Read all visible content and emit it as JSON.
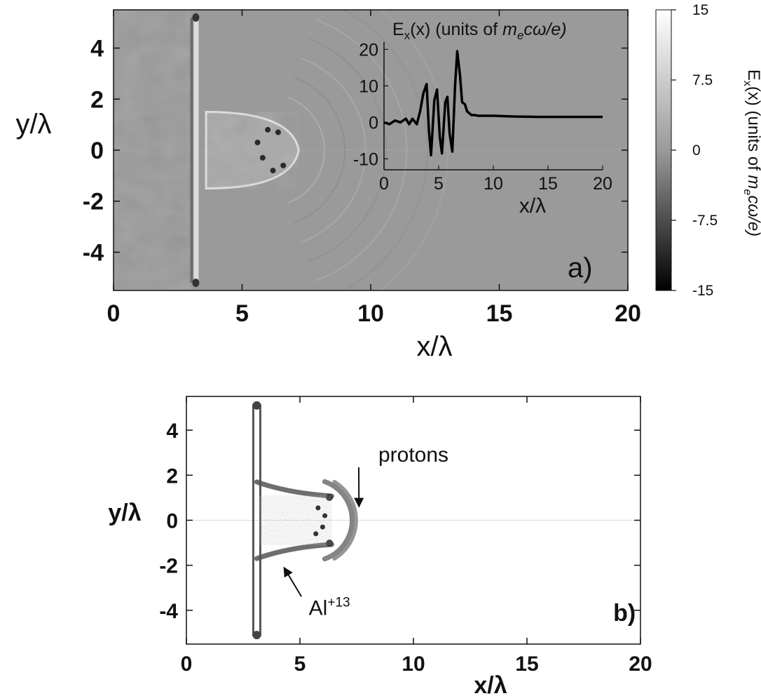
{
  "chart_data": [
    {
      "panel": "a)",
      "type": "heatmap",
      "xlabel": "x/λ",
      "ylabel": "y/λ",
      "xlim": [
        0,
        20
      ],
      "ylim": [
        -5.5,
        5.5
      ],
      "xticks": [
        "0",
        "5",
        "10",
        "15",
        "20"
      ],
      "yticks": [
        "4",
        "2",
        "0",
        "-2",
        "-4"
      ],
      "colorbar": {
        "label": "E_x(x) (units of m_e cω/e)",
        "label_parts": [
          "E",
          "x",
          "(x) (units of ",
          "m",
          "e",
          "cω/e)"
        ],
        "ticks": [
          "15",
          "7.5",
          "0",
          "-7.5",
          "-15"
        ],
        "range": [
          -15,
          15
        ],
        "colormap": "grayscale, black = -15, white = 15"
      },
      "features": {
        "target_foil_x": 3.2,
        "foil_extent_y": [
          -5.2,
          5.2
        ],
        "shock_front_apex_x": 7.2,
        "shock_front_halfwidth_y": 1.5,
        "wave_arc_center": [
          6.0,
          0
        ],
        "wave_arc_radii": [
          2.2,
          3.0,
          3.8,
          4.6,
          5.4,
          6.2,
          7.0
        ]
      },
      "inset": {
        "type": "line",
        "title": "E_x(x)  (units of m_e cω/e)",
        "title_parts": [
          "E",
          "x",
          "(x)  (units of ",
          "m",
          "e",
          "cω/e)"
        ],
        "xlabel": "x/λ",
        "xlim": [
          0,
          20
        ],
        "ylim": [
          -13,
          22
        ],
        "xticks": [
          "0",
          "5",
          "10",
          "15",
          "20"
        ],
        "yticks": [
          "20",
          "10",
          "0",
          "-10"
        ],
        "x": [
          0,
          0.5,
          1.0,
          1.5,
          2.0,
          2.3,
          2.6,
          3.0,
          3.3,
          3.6,
          3.9,
          4.1,
          4.3,
          4.6,
          4.85,
          5.1,
          5.3,
          5.6,
          5.8,
          6.0,
          6.25,
          6.5,
          6.7,
          6.95,
          7.15,
          7.4,
          7.6,
          7.8,
          8.0,
          8.3,
          8.6,
          9.0,
          10,
          12,
          14,
          16,
          18,
          20
        ],
        "y": [
          0,
          -0.5,
          0.5,
          0,
          1.0,
          -0.5,
          1.0,
          -0.5,
          3.0,
          8.0,
          10.5,
          -2.0,
          -9.0,
          6.0,
          9.0,
          -4.0,
          -8.5,
          5.5,
          7.0,
          -3.0,
          -8.0,
          10.0,
          19.5,
          13.0,
          5.5,
          5.0,
          3.0,
          2.5,
          2.0,
          2.0,
          1.8,
          1.8,
          1.8,
          1.6,
          1.5,
          1.5,
          1.5,
          1.5
        ]
      },
      "annotation": "a)"
    },
    {
      "panel": "b)",
      "type": "scatter",
      "xlabel": "x/λ",
      "ylabel": "y/λ",
      "xlim": [
        0,
        20
      ],
      "ylim": [
        -5.5,
        5.5
      ],
      "xticks": [
        "0",
        "5",
        "10",
        "15",
        "20"
      ],
      "yticks": [
        "4",
        "2",
        "0",
        "-2",
        "-4"
      ],
      "series": [
        {
          "name": "Al⁺¹³",
          "color": "#555555",
          "foil_x": 3.1,
          "foil_extent_y": [
            -5.1,
            5.1
          ],
          "arm_end_x": 6.4,
          "arm_y": [
            1.2,
            -1.2
          ]
        },
        {
          "name": "protons",
          "color": "#777777",
          "arc_center": [
            5.5,
            0
          ],
          "arc_radius": 1.8,
          "arc_halfwidth_y": 1.7
        }
      ],
      "annotations": [
        {
          "text": "protons",
          "text_xy": [
            10.0,
            2.6
          ],
          "arrow_to": [
            7.6,
            0.6
          ]
        },
        {
          "text": "Al",
          "sup": "+13",
          "text_xy": [
            6.3,
            -4.2
          ],
          "arrow_to": [
            4.3,
            -2.1
          ]
        },
        {
          "text": "b)",
          "text_xy": [
            18.8,
            -4.1
          ]
        }
      ]
    }
  ]
}
